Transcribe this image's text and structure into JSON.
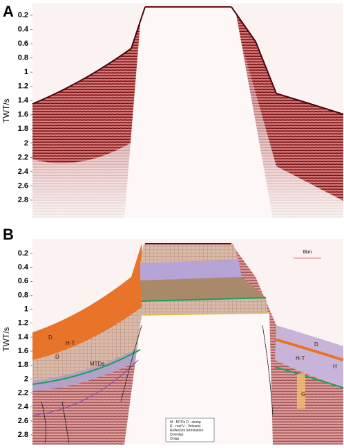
{
  "panels": [
    {
      "label": "A",
      "axis_label": "TWT/s",
      "yticks": [
        0.2,
        0.4,
        0.6,
        0.8,
        1.0,
        1.2,
        1.4,
        1.6,
        1.8,
        2.0,
        2.2,
        2.4,
        2.6,
        2.8
      ]
    },
    {
      "label": "B",
      "axis_label": "TWT/s",
      "yticks": [
        0.2,
        0.4,
        0.6,
        0.8,
        1.0,
        1.2,
        1.4,
        1.6,
        1.8,
        2.0,
        2.2,
        2.4,
        2.6,
        2.8
      ],
      "scale_bar": "6km",
      "annotations": [
        "D",
        "H-T",
        "D",
        "MTDs",
        "D",
        "H-T",
        "H",
        "G"
      ],
      "legend": [
        "M - MTDs   D - slump",
        "R - reef   V - Volcanic",
        "Reflection termination",
        "Downlap",
        "Onlap"
      ]
    }
  ]
}
